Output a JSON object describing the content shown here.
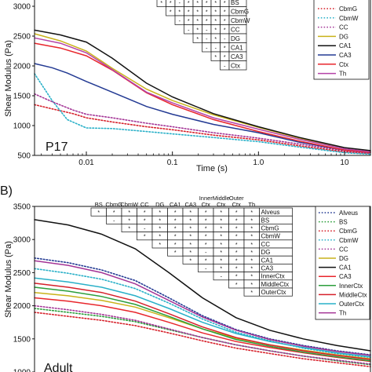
{
  "panel_labels": [
    "B)"
  ],
  "chart_data": [
    {
      "type": "line",
      "x_scale": "log",
      "xlim": [
        0.0025,
        20
      ],
      "ylim": [
        500,
        3000
      ],
      "xlabel": "Time (s)",
      "ylabel": "Shear Modulus (Pa)",
      "x_ticks": [
        0.01,
        0.1,
        1,
        10
      ],
      "x_tick_labels": [
        "0.01",
        "0.1",
        "1.0",
        "10"
      ],
      "y_ticks": [
        500,
        1000,
        1500,
        2000,
        2500,
        3000
      ],
      "annotation": "P17",
      "legend": [
        "CbmG",
        "CbmW",
        "CC",
        "DG",
        "CA1",
        "CA3",
        "Ctx",
        "Th"
      ],
      "series": [
        {
          "name": "CbmG",
          "color": "#d6202a",
          "dash": "dotted",
          "x": [
            0.0025,
            0.004,
            0.007,
            0.01,
            0.02,
            0.05,
            0.1,
            0.3,
            1,
            3,
            10,
            20
          ],
          "y": [
            1350,
            1280,
            1200,
            1130,
            1060,
            980,
            930,
            840,
            760,
            660,
            560,
            530
          ]
        },
        {
          "name": "CbmW",
          "color": "#29b0c8",
          "dash": "dotted",
          "x": [
            0.0025,
            0.004,
            0.006,
            0.01,
            0.02,
            0.05,
            0.1,
            0.3,
            1,
            3,
            10,
            20
          ],
          "y": [
            1870,
            1420,
            1100,
            960,
            950,
            900,
            860,
            800,
            730,
            640,
            545,
            520
          ]
        },
        {
          "name": "CC",
          "color": "#a43596",
          "dash": "dotted",
          "x": [
            0.0025,
            0.004,
            0.007,
            0.01,
            0.02,
            0.05,
            0.1,
            0.3,
            1,
            3,
            10,
            20
          ],
          "y": [
            1530,
            1400,
            1260,
            1190,
            1130,
            1040,
            980,
            880,
            790,
            690,
            580,
            540
          ]
        },
        {
          "name": "DG",
          "color": "#c9b21a",
          "dash": "solid",
          "x": [
            0.0025,
            0.005,
            0.01,
            0.02,
            0.05,
            0.1,
            0.3,
            1,
            3,
            10,
            20
          ],
          "y": [
            2540,
            2420,
            2250,
            1960,
            1610,
            1420,
            1180,
            970,
            790,
            620,
            570
          ]
        },
        {
          "name": "CA1",
          "color": "#111111",
          "dash": "solid",
          "x": [
            0.0025,
            0.005,
            0.01,
            0.02,
            0.05,
            0.1,
            0.3,
            1,
            3,
            10,
            20
          ],
          "y": [
            2600,
            2520,
            2400,
            2130,
            1710,
            1480,
            1200,
            980,
            800,
            630,
            580
          ]
        },
        {
          "name": "CA3",
          "color": "#233a93",
          "dash": "solid",
          "x": [
            0.0025,
            0.004,
            0.006,
            0.01,
            0.02,
            0.05,
            0.1,
            0.3,
            1,
            3,
            10,
            20
          ],
          "y": [
            2040,
            1970,
            1880,
            1740,
            1560,
            1320,
            1190,
            1020,
            880,
            720,
            590,
            550
          ]
        },
        {
          "name": "Ctx",
          "color": "#e8262c",
          "dash": "solid",
          "x": [
            0.0025,
            0.005,
            0.01,
            0.02,
            0.05,
            0.1,
            0.3,
            1,
            3,
            10,
            20
          ],
          "y": [
            2380,
            2300,
            2170,
            1930,
            1550,
            1350,
            1100,
            900,
            740,
            590,
            550
          ]
        },
        {
          "name": "Th",
          "color": "#b443a8",
          "dash": "solid",
          "x": [
            0.0025,
            0.005,
            0.01,
            0.02,
            0.05,
            0.1,
            0.3,
            1,
            3,
            10,
            20
          ],
          "y": [
            2470,
            2380,
            2220,
            1940,
            1560,
            1380,
            1130,
            940,
            770,
            610,
            560
          ]
        }
      ],
      "sig_table": {
        "rows": [
          "BS",
          "CbmG",
          "CbmW",
          "CC",
          "DG",
          "CA1",
          "CA3",
          "Ctx"
        ],
        "symbols": [
          [
            "*",
            "*",
            "-",
            "*",
            "*",
            "*",
            "*",
            "*"
          ],
          [
            "",
            "*",
            "*",
            "*",
            "*",
            "*",
            "*",
            "*"
          ],
          [
            "",
            "",
            "-",
            "*",
            "*",
            "*",
            "*",
            "*"
          ],
          [
            "",
            "",
            "",
            "-",
            "*",
            "-",
            "*",
            "*"
          ],
          [
            "",
            "",
            "",
            "",
            "*",
            "-",
            "*",
            "-"
          ],
          [
            "",
            "",
            "",
            "",
            "",
            "-",
            "-",
            "*"
          ],
          [
            "",
            "",
            "",
            "",
            "",
            "",
            "*",
            "*"
          ],
          [
            "",
            "",
            "",
            "",
            "",
            "",
            "",
            "-"
          ]
        ]
      }
    },
    {
      "type": "line",
      "ylim": [
        1000,
        3500
      ],
      "ylabel": "Shear Modulus (Pa)",
      "y_ticks": [
        1000,
        1500,
        2000,
        2500,
        3000,
        3500
      ],
      "annotation": "Adult",
      "legend": [
        "Alveus",
        "BS",
        "CbmG",
        "CbmW",
        "CC",
        "DG",
        "CA1",
        "CA3",
        "InnerCtx",
        "MiddleCtx",
        "OuterCtx",
        "Th"
      ],
      "series": [
        {
          "name": "Alveus",
          "color": "#233a93",
          "dash": "dotted",
          "u": [
            0,
            0.1,
            0.2,
            0.3,
            0.4,
            0.5,
            0.6,
            0.7,
            0.8,
            0.9,
            1
          ],
          "y": [
            2720,
            2650,
            2540,
            2380,
            2120,
            1850,
            1640,
            1500,
            1400,
            1320,
            1260
          ]
        },
        {
          "name": "BS",
          "color": "#2c9e3c",
          "dash": "dotted",
          "u": [
            0,
            0.1,
            0.2,
            0.3,
            0.4,
            0.5,
            0.6,
            0.7,
            0.8,
            0.9,
            1
          ],
          "y": [
            1960,
            1900,
            1840,
            1760,
            1640,
            1520,
            1410,
            1320,
            1240,
            1170,
            1110
          ]
        },
        {
          "name": "CbmG",
          "color": "#d6202a",
          "dash": "dotted",
          "u": [
            0,
            0.1,
            0.2,
            0.3,
            0.4,
            0.5,
            0.6,
            0.7,
            0.8,
            0.9,
            1
          ],
          "y": [
            1900,
            1840,
            1780,
            1700,
            1590,
            1470,
            1360,
            1280,
            1200,
            1140,
            1080
          ]
        },
        {
          "name": "CbmW",
          "color": "#29b0c8",
          "dash": "dotted",
          "u": [
            0,
            0.1,
            0.2,
            0.3,
            0.4,
            0.5,
            0.6,
            0.7,
            0.8,
            0.9,
            1
          ],
          "y": [
            2560,
            2490,
            2400,
            2260,
            2040,
            1800,
            1600,
            1470,
            1360,
            1280,
            1220
          ]
        },
        {
          "name": "CC",
          "color": "#a43596",
          "dash": "dotted",
          "u": [
            0,
            0.1,
            0.2,
            0.3,
            0.4,
            0.5,
            0.6,
            0.7,
            0.8,
            0.9,
            1
          ],
          "y": [
            2000,
            1940,
            1870,
            1780,
            1650,
            1520,
            1410,
            1320,
            1240,
            1180,
            1120
          ]
        },
        {
          "name": "DG",
          "color": "#c9b21a",
          "dash": "solid",
          "u": [
            0,
            0.1,
            0.2,
            0.3,
            0.4,
            0.5,
            0.6,
            0.7,
            0.8,
            0.9,
            1
          ],
          "y": [
            2200,
            2150,
            2080,
            1980,
            1820,
            1650,
            1510,
            1410,
            1330,
            1260,
            1200
          ]
        },
        {
          "name": "CA1",
          "color": "#111111",
          "dash": "solid",
          "u": [
            0,
            0.1,
            0.2,
            0.3,
            0.4,
            0.5,
            0.6,
            0.7,
            0.8,
            0.9,
            1
          ],
          "y": [
            3300,
            3220,
            3080,
            2860,
            2500,
            2120,
            1820,
            1630,
            1500,
            1400,
            1320
          ]
        },
        {
          "name": "CA3",
          "color": "#e8262c",
          "dash": "solid",
          "u": [
            0,
            0.1,
            0.2,
            0.3,
            0.4,
            0.5,
            0.6,
            0.7,
            0.8,
            0.9,
            1
          ],
          "y": [
            2120,
            2070,
            2000,
            1900,
            1750,
            1590,
            1460,
            1370,
            1290,
            1220,
            1160
          ]
        },
        {
          "name": "InnerCtx",
          "color": "#2c9e3c",
          "dash": "solid",
          "u": [
            0,
            0.1,
            0.2,
            0.3,
            0.4,
            0.5,
            0.6,
            0.7,
            0.8,
            0.9,
            1
          ],
          "y": [
            2280,
            2220,
            2140,
            2020,
            1840,
            1650,
            1490,
            1390,
            1300,
            1230,
            1170
          ]
        },
        {
          "name": "MiddleCtx",
          "color": "#d6202a",
          "dash": "solid",
          "u": [
            0,
            0.1,
            0.2,
            0.3,
            0.4,
            0.5,
            0.6,
            0.7,
            0.8,
            0.9,
            1
          ],
          "y": [
            2340,
            2280,
            2200,
            2070,
            1880,
            1680,
            1520,
            1410,
            1320,
            1250,
            1190
          ]
        },
        {
          "name": "OuterCtx",
          "color": "#29b0c8",
          "dash": "solid",
          "u": [
            0,
            0.1,
            0.2,
            0.3,
            0.4,
            0.5,
            0.6,
            0.7,
            0.8,
            0.9,
            1
          ],
          "y": [
            2420,
            2360,
            2280,
            2150,
            1960,
            1750,
            1580,
            1460,
            1370,
            1290,
            1230
          ]
        },
        {
          "name": "Th",
          "color": "#a43596",
          "dash": "solid",
          "u": [
            0,
            0.1,
            0.2,
            0.3,
            0.4,
            0.5,
            0.6,
            0.7,
            0.8,
            0.9,
            1
          ],
          "y": [
            2680,
            2610,
            2500,
            2330,
            2080,
            1830,
            1630,
            1490,
            1390,
            1310,
            1250
          ]
        }
      ],
      "sig_table": {
        "columns": [
          "BS",
          "CbmG",
          "CbmW",
          "CC",
          "DG",
          "CA1",
          "CA3",
          "Inner Ctx",
          "Middle Ctx",
          "Outer Ctx",
          "Th"
        ],
        "rows": [
          "Alveus",
          "BS",
          "CbmG",
          "CbmW",
          "CC",
          "DG",
          "CA1",
          "CA3",
          "InnerCtx",
          "MiddleCtx",
          "OuterCtx"
        ],
        "symbols": [
          [
            "*",
            "*",
            "*",
            "*",
            "*",
            "*",
            "*",
            "*",
            "*",
            "*",
            "*"
          ],
          [
            "",
            "-",
            "*",
            "*",
            "*",
            "*",
            "*",
            "*",
            "*",
            "*",
            "*"
          ],
          [
            "",
            "",
            "*",
            "-",
            "*",
            "*",
            "*",
            "*",
            "*",
            "*",
            "*"
          ],
          [
            "",
            "",
            "",
            "*",
            "*",
            "*",
            "*",
            "*",
            "*",
            "*",
            "*"
          ],
          [
            "",
            "",
            "",
            "",
            "*",
            "*",
            "*",
            "*",
            "*",
            "*",
            "*"
          ],
          [
            "",
            "",
            "",
            "",
            "",
            "*",
            "*",
            "-",
            "*",
            "*",
            "*"
          ],
          [
            "",
            "",
            "",
            "",
            "",
            "",
            "*",
            "*",
            "*",
            "*",
            "*"
          ],
          [
            "",
            "",
            "",
            "",
            "",
            "",
            "",
            "-",
            "*",
            "*",
            "*"
          ],
          [
            "",
            "",
            "",
            "",
            "",
            "",
            "",
            "",
            "-",
            "*",
            "*"
          ],
          [
            "",
            "",
            "",
            "",
            "",
            "",
            "",
            "",
            "",
            "*",
            "*"
          ],
          [
            "",
            "",
            "",
            "",
            "",
            "",
            "",
            "",
            "",
            "",
            "*"
          ]
        ]
      }
    }
  ]
}
